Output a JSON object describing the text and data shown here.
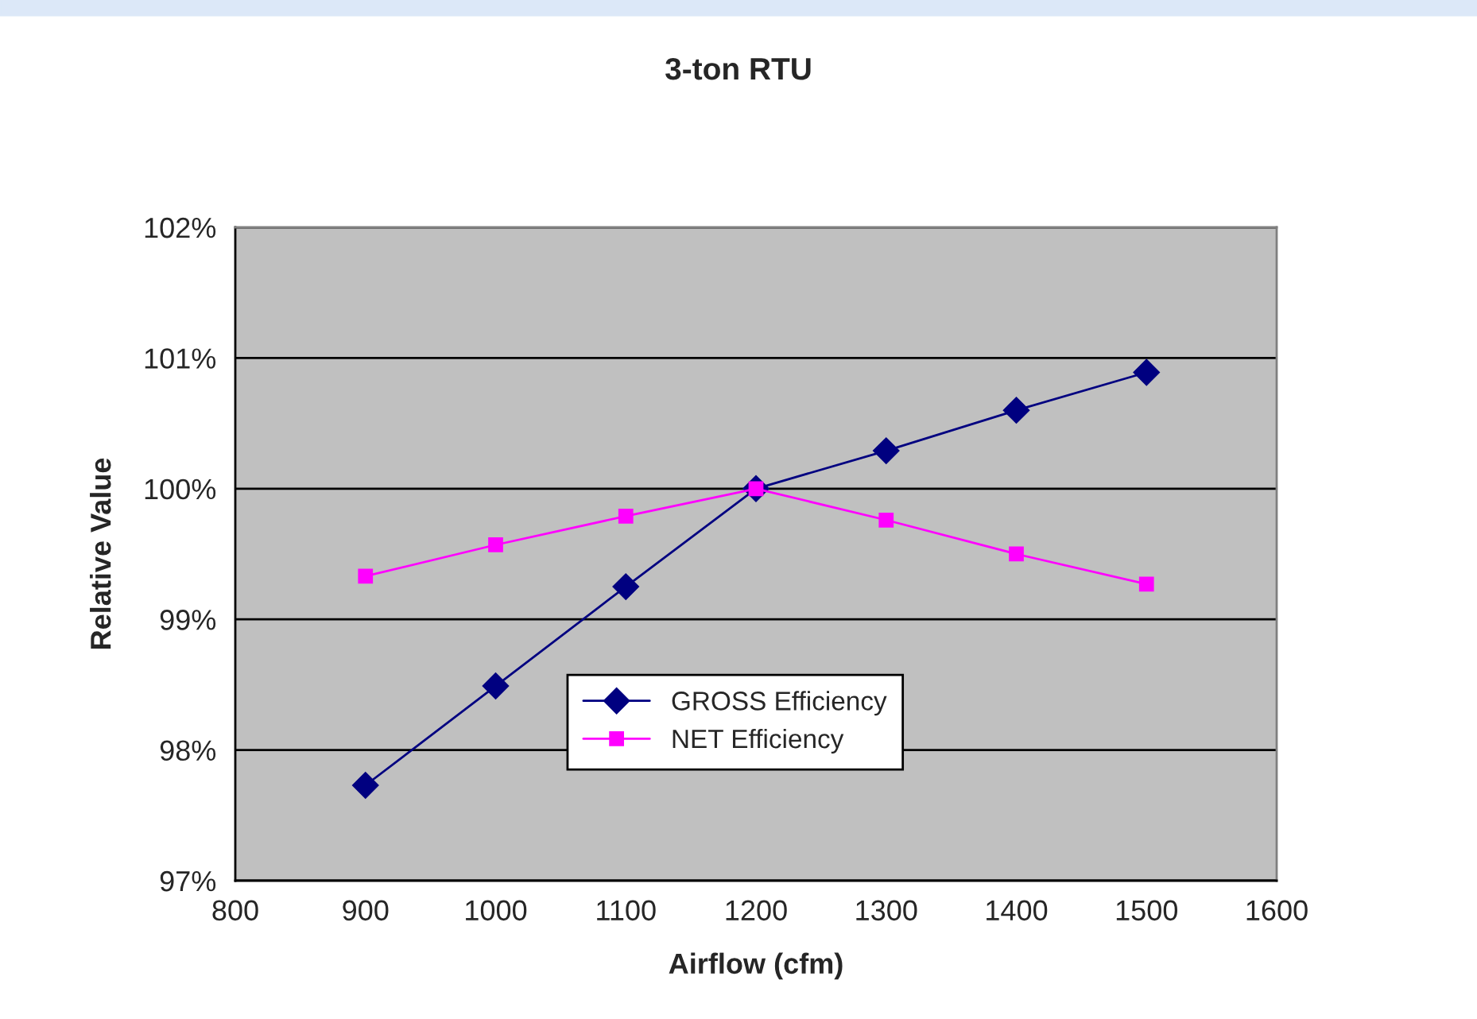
{
  "chart_data": {
    "type": "line",
    "title": "3-ton RTU",
    "xlabel": "Airflow (cfm)",
    "ylabel": "Relative Value",
    "x": [
      900,
      1000,
      1100,
      1200,
      1300,
      1400,
      1500
    ],
    "series": [
      {
        "name": "GROSS Efficiency",
        "color": "#000080",
        "marker": "diamond",
        "values": [
          97.73,
          98.49,
          99.25,
          100.0,
          100.29,
          100.6,
          100.89
        ]
      },
      {
        "name": "NET Efficiency",
        "color": "#ff00ff",
        "marker": "square",
        "values": [
          99.33,
          99.57,
          99.79,
          100.0,
          99.76,
          99.5,
          99.27
        ]
      }
    ],
    "xlim": [
      800,
      1600
    ],
    "xticks": [
      800,
      900,
      1000,
      1100,
      1200,
      1300,
      1400,
      1500,
      1600
    ],
    "ylim": [
      97,
      102
    ],
    "yticks": [
      {
        "value": 97,
        "label": "97%"
      },
      {
        "value": 98,
        "label": "98%"
      },
      {
        "value": 99,
        "label": "99%"
      },
      {
        "value": 100,
        "label": "100%"
      },
      {
        "value": 101,
        "label": "101%"
      },
      {
        "value": 102,
        "label": "102%"
      }
    ],
    "grid": "y",
    "legend": "bottom",
    "line_style": "solid"
  }
}
